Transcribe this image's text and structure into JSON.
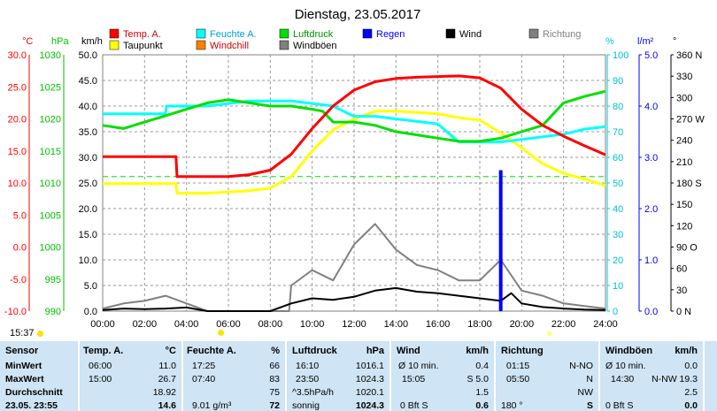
{
  "title": "Dienstag, 23.05.2017",
  "chart_data": {
    "type": "line",
    "x_ticks": [
      "00:00",
      "02:00",
      "04:00",
      "06:00",
      "08:00",
      "10:00",
      "12:00",
      "14:00",
      "16:00",
      "18:00",
      "20:00",
      "22:00",
      "24:00"
    ],
    "xlim": [
      0,
      24
    ],
    "axes": [
      {
        "label": "°C",
        "ticks": [
          "30.0",
          "25.0",
          "20.0",
          "15.0",
          "10.0",
          "5.0",
          "0.0",
          "-5.0",
          "-10.0"
        ],
        "range": [
          -10,
          30
        ],
        "color": "#ff0000"
      },
      {
        "label": "hPa",
        "ticks": [
          "1030",
          "1025",
          "1020",
          "1015",
          "1010",
          "1005",
          "1000",
          "995",
          "990"
        ],
        "range": [
          990,
          1030
        ],
        "color": "#00c000"
      },
      {
        "label": "km/h",
        "ticks": [
          "50.0",
          "45.0",
          "40.0",
          "35.0",
          "30.0",
          "25.0",
          "20.0",
          "15.0",
          "10.0",
          "5.0",
          "0.0"
        ],
        "range": [
          0,
          50
        ],
        "color": "#000000"
      },
      {
        "label": "%",
        "ticks": [
          "100",
          "90",
          "80",
          "70",
          "60",
          "50",
          "40",
          "30",
          "20",
          "10",
          "0"
        ],
        "range": [
          0,
          100
        ],
        "color": "#00cccc"
      },
      {
        "label": "l/m²",
        "ticks": [
          "5.0",
          "4.0",
          "3.0",
          "2.0",
          "1.0",
          "0.0"
        ],
        "range": [
          0,
          5
        ],
        "color": "#0000ff"
      },
      {
        "label": "°",
        "ticks": [
          "360 N",
          "330",
          "300",
          "270 W",
          "240",
          "210",
          "180 S",
          "150",
          "120",
          "90 O",
          "60",
          "30",
          "0 N"
        ],
        "range": [
          0,
          360
        ],
        "color": "#000000"
      }
    ],
    "legend": [
      {
        "name": "Temp. A.",
        "color": "#ff0000"
      },
      {
        "name": "Feuchte A.",
        "color": "#00ffff"
      },
      {
        "name": "Luftdruck",
        "color": "#00e000"
      },
      {
        "name": "Regen",
        "color": "#0000ff"
      },
      {
        "name": "Wind",
        "color": "#000000"
      },
      {
        "name": "Richtung",
        "color": "#808080"
      },
      {
        "name": "Taupunkt",
        "color": "#ffff00"
      },
      {
        "name": "Windchill",
        "color": "#ff8000"
      },
      {
        "name": "Windböen",
        "color": "#808080"
      }
    ],
    "series": [
      {
        "name": "Temp. A.",
        "axis": "°C",
        "color": "#ff0000",
        "x": [
          0,
          2,
          3.5,
          3.55,
          5,
          6,
          7,
          8,
          9,
          10,
          11,
          12,
          13,
          14,
          15,
          16,
          17,
          18,
          19,
          20,
          21,
          22,
          23,
          24
        ],
        "y": [
          14.1,
          14.1,
          14.1,
          11.0,
          11.0,
          11.0,
          11.3,
          12.0,
          14.5,
          18.5,
          22.0,
          24.5,
          25.8,
          26.3,
          26.5,
          26.6,
          26.7,
          26.4,
          24.8,
          21.5,
          19.0,
          17.3,
          15.8,
          14.4
        ]
      },
      {
        "name": "Taupunkt",
        "axis": "°C",
        "color": "#ffff00",
        "x": [
          0,
          2,
          3.5,
          3.55,
          5,
          6,
          7,
          8,
          9,
          10,
          11,
          12,
          13,
          14,
          15,
          16,
          17,
          18,
          19,
          20,
          21,
          22,
          23,
          24
        ],
        "y": [
          9.9,
          9.9,
          9.9,
          8.4,
          8.4,
          8.6,
          8.8,
          9.2,
          11.0,
          15.0,
          18.3,
          20.0,
          21.2,
          21.2,
          21.0,
          20.8,
          20.2,
          19.8,
          17.8,
          15.5,
          13.0,
          11.5,
          10.6,
          9.6
        ]
      },
      {
        "name": "Feuchte A.",
        "axis": "%",
        "color": "#00ffff",
        "x": [
          0,
          2,
          3,
          3.05,
          5,
          6,
          7,
          8,
          9,
          10,
          11,
          12,
          13,
          14,
          15,
          16,
          17,
          18,
          19,
          20,
          21,
          22,
          23,
          24
        ],
        "y": [
          77,
          77,
          77,
          80,
          80,
          81,
          82,
          82,
          82,
          81,
          80,
          76,
          76,
          75,
          74,
          73,
          66,
          66,
          66,
          67,
          68,
          69,
          71,
          72
        ]
      },
      {
        "name": "Luftdruck",
        "axis": "hPa",
        "color": "#00e000",
        "x": [
          0,
          1,
          2,
          3,
          4,
          5,
          6,
          7,
          8,
          9,
          10,
          10.5,
          11,
          12,
          13,
          14,
          15,
          16,
          17,
          18,
          19,
          20,
          21,
          22,
          23,
          24
        ],
        "y": [
          1019.0,
          1018.5,
          1019.5,
          1020.5,
          1021.5,
          1022.5,
          1023.0,
          1022.5,
          1022.0,
          1022.0,
          1021.5,
          1021.2,
          1019.5,
          1019.5,
          1019.0,
          1018.0,
          1017.5,
          1017.0,
          1016.5,
          1016.5,
          1017.0,
          1018.0,
          1019.0,
          1022.5,
          1023.5,
          1024.3
        ]
      },
      {
        "name": "Regen",
        "axis": "l/m²",
        "color": "#0000ff",
        "type": "bar",
        "x": [
          19
        ],
        "y": [
          2.75
        ]
      },
      {
        "name": "Wind",
        "axis": "km/h",
        "color": "#000000",
        "x": [
          0,
          1,
          2,
          3,
          4,
          5,
          6,
          7,
          8,
          9,
          10,
          11,
          12,
          13,
          14,
          15,
          16,
          17,
          18,
          19,
          19.5,
          20,
          21,
          22,
          23,
          24
        ],
        "y": [
          0.2,
          0.5,
          0.4,
          0.5,
          0.7,
          0,
          0,
          0,
          0,
          1.5,
          2.5,
          2.2,
          2.8,
          4.0,
          4.5,
          3.8,
          3.5,
          3.0,
          2.5,
          2.0,
          3.5,
          1.5,
          0.8,
          0.5,
          0.3,
          0.2
        ]
      },
      {
        "name": "Windböen",
        "axis": "km/h",
        "color": "#808080",
        "x": [
          0,
          1,
          2,
          3,
          4,
          5,
          6,
          7,
          8,
          8.9,
          9,
          10,
          11,
          12,
          13,
          14,
          15,
          16,
          17,
          18,
          19,
          20,
          21,
          22,
          23,
          24
        ],
        "y": [
          0.5,
          1.5,
          2.0,
          3.0,
          1.5,
          0,
          0,
          0,
          0,
          0,
          5.0,
          8.0,
          6.0,
          13.0,
          17.0,
          12.0,
          9.0,
          8.0,
          6.0,
          6.0,
          10.0,
          4.0,
          3.0,
          1.5,
          1.0,
          0.5
        ]
      }
    ],
    "reference_lines": [
      {
        "axis": "°C",
        "value": 11.0,
        "color": "#00e000",
        "style": "dashed"
      }
    ]
  },
  "timebar": {
    "time": "15:37"
  },
  "stats": {
    "rows": [
      "MinWert",
      "MaxWert",
      "Durchschnitt",
      "23.05. 23:55"
    ],
    "sensor": {
      "header": "Sensor"
    },
    "temp": {
      "header": "Temp. A.",
      "unit": "°C",
      "r1": [
        "06:00",
        "11.0"
      ],
      "r2": [
        "15:00",
        "26.7"
      ],
      "r3": [
        "",
        "18.92"
      ],
      "r4": [
        "",
        "14.6"
      ]
    },
    "feuchte": {
      "header": "Feuchte A.",
      "unit": "%",
      "r1": [
        "17:25",
        "66"
      ],
      "r2": [
        "07:40",
        "83"
      ],
      "r3": [
        "",
        "75"
      ],
      "r4": [
        "9.01 g/m³",
        "72"
      ]
    },
    "luftdruck": {
      "header": "Luftdruck",
      "unit": "hPa",
      "r1": [
        "16:10",
        "1016.1"
      ],
      "r2": [
        "23:50",
        "1024.3"
      ],
      "r3": [
        "^3.5hPa/h",
        "1020.1"
      ],
      "r4": [
        "sonnig",
        "1024.3"
      ]
    },
    "wind": {
      "header": "Wind",
      "unit": "km/h",
      "r1": [
        "Ø 10 min.",
        "0.4"
      ],
      "r2": [
        "15:05",
        "S 5.0"
      ],
      "r3": [
        "",
        "1.5"
      ],
      "r4": [
        "0 Bft S",
        "0.6"
      ]
    },
    "richtung": {
      "header": "Richtung",
      "r1": [
        "01:15",
        "N-NO"
      ],
      "r2": [
        "05:50",
        "N"
      ],
      "r3": [
        "",
        "NW"
      ],
      "r4": [
        "180 °",
        "S"
      ]
    },
    "boeen": {
      "header": "Windböen",
      "unit": "km/h",
      "r1": [
        "Ø 10 min.",
        "0.0"
      ],
      "r2": [
        "14:30",
        "N-NW 19.3"
      ],
      "r3": [
        "",
        "2.5"
      ],
      "r4": [
        "0 Bft S",
        "0.0"
      ]
    }
  }
}
